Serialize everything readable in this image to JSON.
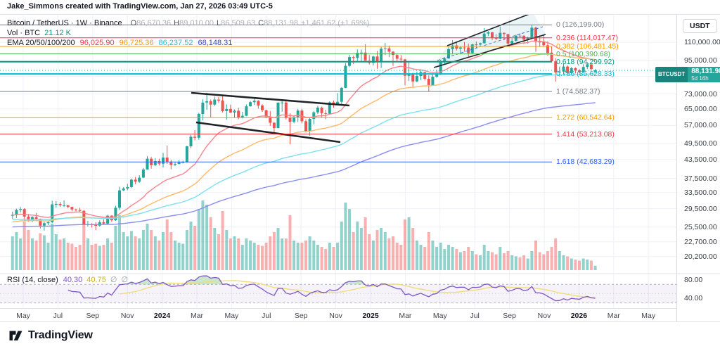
{
  "header": {
    "attribution": "Jake_Simmons created with TradingView.com, Jan 27, 2026 03:49 UTC-5"
  },
  "legend": {
    "symbol": "Bitcoin / TetherUS · 1W · Binance",
    "ohlc": {
      "o_label": "O",
      "o": "86,670.36",
      "h_label": "H",
      "h": "89,010.00",
      "l_label": "L",
      "l": "86,509.63",
      "c_label": "C",
      "c": "88,131.98",
      "change": "+1,461.62 (+1.69%)"
    },
    "volume": {
      "label": "Vol · BTC",
      "value": "21.12 K",
      "color": "#089981"
    },
    "ema": {
      "label": "EMA 20/50/100/200",
      "values": [
        {
          "text": "96,025.90",
          "color": "#f23645"
        },
        {
          "text": "96,725.36",
          "color": "#ff9800"
        },
        {
          "text": "86,237.52",
          "color": "#1fc0d8"
        },
        {
          "text": "68,148.31",
          "color": "#3d43d8"
        }
      ]
    }
  },
  "rsi_legend": {
    "title": "RSI (14, close)",
    "value1": "40.30",
    "value1_color": "#7e57c2",
    "value2": "40.75",
    "value2_color": "#cdb022",
    "empty1": "∅",
    "empty2": "∅"
  },
  "price_axis": {
    "currency": "USDT",
    "ticks": [
      {
        "label": "110,000.00",
        "price": 110000
      },
      {
        "label": "95,000.00",
        "price": 95000
      },
      {
        "label": "",
        "price": 84000
      },
      {
        "label": "73,000.00",
        "price": 73000
      },
      {
        "label": "65,000.00",
        "price": 65000
      },
      {
        "label": "57,000.00",
        "price": 57000
      },
      {
        "label": "49,500.00",
        "price": 49500
      },
      {
        "label": "43,500.00",
        "price": 43500
      },
      {
        "label": "37,500.00",
        "price": 37500
      },
      {
        "label": "33,500.00",
        "price": 33500
      },
      {
        "label": "29,500.00",
        "price": 29500
      },
      {
        "label": "25,500.00",
        "price": 25500
      },
      {
        "label": "22,700.00",
        "price": 22700
      },
      {
        "label": "20,200.00",
        "price": 20200
      }
    ],
    "rsi_ticks": [
      {
        "label": "80.00",
        "value": 80
      },
      {
        "label": "40.00",
        "value": 40
      }
    ],
    "badge": {
      "symbol": "BTCUSDT",
      "price": "88,131.98",
      "countdown": "5d 16h",
      "color_dark": "#17857c",
      "color_main": "#26a69a"
    }
  },
  "time_axis": {
    "labels": [
      {
        "text": "May"
      },
      {
        "text": "Jul"
      },
      {
        "text": "Sep"
      },
      {
        "text": "Nov"
      },
      {
        "text": "2024",
        "bold": true
      },
      {
        "text": "Mar"
      },
      {
        "text": "May"
      },
      {
        "text": "Jul"
      },
      {
        "text": "Sep"
      },
      {
        "text": "Nov"
      },
      {
        "text": "2025",
        "bold": true
      },
      {
        "text": "Mar"
      },
      {
        "text": "May"
      },
      {
        "text": "Jul"
      },
      {
        "text": "Sep"
      },
      {
        "text": "Nov"
      },
      {
        "text": "2026",
        "bold": true
      },
      {
        "text": "Mar"
      },
      {
        "text": "May"
      }
    ]
  },
  "fib_levels": [
    {
      "level": "0",
      "label": "0 (126,199.00)",
      "price": 126199.0,
      "color": "#787b86",
      "width": 1
    },
    {
      "level": "0.236",
      "label": "0.236 (114,017.47)",
      "price": 114017.47,
      "color": "#f23645",
      "width": 1
    },
    {
      "level": "0.382",
      "label": "0.382 (106,481.45)",
      "price": 106481.45,
      "color": "#ff9800",
      "width": 1
    },
    {
      "level": "0.5",
      "label": "0.5 (100,390.68)",
      "price": 100390.68,
      "color": "#4caf50",
      "width": 1
    },
    {
      "level": "0.618",
      "label": "0.618 (94,299.92)",
      "price": 94299.92,
      "color": "#089981",
      "width": 2
    },
    {
      "level": "0.786",
      "label": "0.786 (85,628.33)",
      "price": 85628.33,
      "color": "#00bcd4",
      "width": 2
    },
    {
      "level": "1",
      "label": "1 (74,582.37)",
      "price": 74582.37,
      "color": "#787b86",
      "width": 1
    },
    {
      "level": "1.272",
      "label": "1.272 (60,542.64)",
      "price": 60542.64,
      "color": "#ff9800",
      "width": 1
    },
    {
      "level": "1.414",
      "label": "1.414 (53,213.08)",
      "price": 53213.08,
      "color": "#f23645",
      "width": 1
    },
    {
      "level": "1.618",
      "label": "1.618 (42,683.29)",
      "price": 42683.29,
      "color": "#2962ff",
      "width": 1
    }
  ],
  "logo": {
    "text": "TradingView"
  },
  "chart_data": {
    "type": "candlestick",
    "symbol": "BTCUSDT",
    "timeframe": "1W",
    "exchange": "Binance",
    "current_price": 88.13198,
    "colors": {
      "up": "#26a69a",
      "down": "#ef5350",
      "vol_up": "rgba(38,166,154,0.5)",
      "vol_down": "rgba(239,83,80,0.45)",
      "grid": "#eef1f7",
      "price_line": "#26a69a"
    },
    "candles_format": [
      "open_k",
      "high_k",
      "low_k",
      "close_k",
      "volume_kbtc"
    ],
    "candles": [
      [
        27.9,
        28.8,
        27.2,
        28.1,
        160
      ],
      [
        28.1,
        29.5,
        27.4,
        29.2,
        180
      ],
      [
        29.2,
        29.9,
        28.6,
        29.4,
        150
      ],
      [
        29.4,
        29.6,
        26.8,
        27.7,
        230
      ],
      [
        27.7,
        28.3,
        26.6,
        26.9,
        190
      ],
      [
        26.9,
        27.8,
        26.5,
        27.6,
        150
      ],
      [
        27.6,
        28.5,
        26.7,
        27.2,
        140
      ],
      [
        27.2,
        27.3,
        25.2,
        25.8,
        175
      ],
      [
        25.8,
        26.6,
        24.8,
        26.3,
        165
      ],
      [
        26.3,
        26.8,
        25.9,
        26.5,
        130
      ],
      [
        26.5,
        31.4,
        26.3,
        30.5,
        220
      ],
      [
        30.5,
        31.3,
        29.7,
        30.6,
        170
      ],
      [
        30.6,
        31.1,
        29.9,
        30.3,
        145
      ],
      [
        30.3,
        31.5,
        29.9,
        30.3,
        150
      ],
      [
        30.3,
        30.4,
        29.6,
        29.9,
        130
      ],
      [
        29.9,
        30.0,
        28.9,
        29.3,
        125
      ],
      [
        29.3,
        29.5,
        28.9,
        29.2,
        110
      ],
      [
        29.2,
        29.7,
        28.7,
        29.0,
        120
      ],
      [
        29.0,
        29.2,
        25.9,
        26.0,
        230
      ],
      [
        26.0,
        26.8,
        25.6,
        26.1,
        150
      ],
      [
        26.1,
        26.3,
        25.4,
        25.9,
        120
      ],
      [
        25.9,
        26.5,
        24.9,
        25.8,
        125
      ],
      [
        25.8,
        26.9,
        25.6,
        26.5,
        115
      ],
      [
        26.5,
        27.1,
        26.1,
        26.2,
        120
      ],
      [
        26.2,
        28.1,
        26.1,
        27.9,
        150
      ],
      [
        27.9,
        28.0,
        26.6,
        26.9,
        130
      ],
      [
        26.9,
        30.2,
        26.8,
        29.7,
        210
      ],
      [
        29.7,
        35.1,
        29.2,
        34.1,
        260
      ],
      [
        34.1,
        35.0,
        33.9,
        34.6,
        180
      ],
      [
        34.6,
        35.9,
        34.1,
        35.0,
        160
      ],
      [
        35.0,
        37.4,
        34.7,
        37.1,
        185
      ],
      [
        37.1,
        37.9,
        35.8,
        36.5,
        160
      ],
      [
        36.5,
        38.4,
        36.2,
        37.7,
        150
      ],
      [
        37.7,
        40.7,
        37.6,
        40.2,
        190
      ],
      [
        40.2,
        44.7,
        40.2,
        43.8,
        220
      ],
      [
        43.8,
        44.4,
        40.5,
        41.6,
        190
      ],
      [
        41.6,
        44.0,
        41.3,
        43.0,
        160
      ],
      [
        43.0,
        43.8,
        41.5,
        42.1,
        140
      ],
      [
        42.1,
        45.9,
        40.8,
        44.2,
        180
      ],
      [
        44.2,
        48.6,
        42.0,
        42.8,
        240
      ],
      [
        42.8,
        43.4,
        40.3,
        41.7,
        180
      ],
      [
        41.7,
        42.8,
        41.3,
        42.0,
        140
      ],
      [
        42.0,
        43.3,
        41.9,
        42.6,
        130
      ],
      [
        42.6,
        43.1,
        42.2,
        42.6,
        125
      ],
      [
        42.6,
        48.5,
        42.4,
        48.3,
        190
      ],
      [
        48.3,
        52.9,
        47.6,
        52.1,
        230
      ],
      [
        52.1,
        54.9,
        50.7,
        51.7,
        210
      ],
      [
        51.7,
        63.0,
        50.9,
        62.4,
        290
      ],
      [
        62.4,
        70.1,
        59.3,
        68.3,
        330
      ],
      [
        68.3,
        73.8,
        64.5,
        69.0,
        310
      ],
      [
        69.0,
        70.0,
        60.8,
        67.2,
        250
      ],
      [
        67.2,
        71.6,
        66.4,
        69.9,
        200
      ],
      [
        69.9,
        71.3,
        68.1,
        69.4,
        170
      ],
      [
        69.4,
        72.8,
        63.1,
        63.8,
        280
      ],
      [
        63.8,
        67.3,
        59.6,
        64.9,
        190
      ],
      [
        64.9,
        67.2,
        62.8,
        63.1,
        150
      ],
      [
        63.1,
        64.7,
        60.6,
        64.0,
        160
      ],
      [
        64.0,
        65.5,
        59.8,
        60.8,
        150
      ],
      [
        60.8,
        63.5,
        60.2,
        61.5,
        120
      ],
      [
        61.5,
        67.3,
        61.3,
        66.3,
        150
      ],
      [
        66.3,
        69.2,
        66.1,
        68.5,
        140
      ],
      [
        68.5,
        70.6,
        67.1,
        69.3,
        130
      ],
      [
        69.3,
        69.6,
        65.1,
        66.7,
        120
      ],
      [
        66.7,
        67.3,
        63.4,
        64.3,
        115
      ],
      [
        64.3,
        64.5,
        60.7,
        60.9,
        130
      ],
      [
        60.9,
        63.9,
        56.8,
        58.2,
        160
      ],
      [
        58.2,
        58.5,
        53.5,
        55.8,
        180
      ],
      [
        55.8,
        68.4,
        55.7,
        68.2,
        200
      ],
      [
        68.2,
        69.9,
        63.5,
        68.3,
        150
      ],
      [
        68.3,
        69.4,
        59.7,
        60.7,
        150
      ],
      [
        60.7,
        62.7,
        49.1,
        58.7,
        260
      ],
      [
        58.7,
        61.8,
        57.9,
        60.9,
        140
      ],
      [
        60.9,
        64.9,
        58.5,
        64.1,
        130
      ],
      [
        64.1,
        65.0,
        57.9,
        58.9,
        130
      ],
      [
        58.9,
        59.8,
        53.9,
        54.6,
        140
      ],
      [
        54.6,
        60.6,
        52.5,
        60.0,
        160
      ],
      [
        60.0,
        63.8,
        57.5,
        63.2,
        140
      ],
      [
        63.2,
        66.5,
        62.4,
        65.6,
        120
      ],
      [
        65.6,
        66.1,
        60.8,
        62.8,
        110
      ],
      [
        62.8,
        64.5,
        59.8,
        62.5,
        100
      ],
      [
        62.5,
        68.9,
        62.1,
        68.4,
        130
      ],
      [
        68.4,
        69.4,
        65.5,
        67.0,
        110
      ],
      [
        67.0,
        73.6,
        66.9,
        68.7,
        130
      ],
      [
        68.7,
        77.2,
        66.8,
        76.7,
        230
      ],
      [
        76.7,
        93.4,
        76.5,
        91.3,
        320
      ],
      [
        91.3,
        99.6,
        90.3,
        97.9,
        290
      ],
      [
        97.9,
        98.9,
        92.6,
        97.2,
        180
      ],
      [
        97.2,
        104.0,
        94.1,
        101.2,
        230
      ],
      [
        101.2,
        103.9,
        94.2,
        101.4,
        200
      ],
      [
        101.4,
        108.3,
        95.7,
        95.1,
        250
      ],
      [
        95.1,
        99.5,
        92.2,
        93.5,
        170
      ],
      [
        93.5,
        98.8,
        91.5,
        98.3,
        140
      ],
      [
        98.3,
        102.7,
        89.2,
        94.6,
        190
      ],
      [
        94.6,
        105.9,
        89.7,
        104.5,
        200
      ],
      [
        104.5,
        109.4,
        99.5,
        104.8,
        180
      ],
      [
        104.8,
        107.2,
        97.8,
        102.1,
        150
      ],
      [
        102.1,
        102.5,
        91.2,
        99.5,
        160
      ],
      [
        99.5,
        100.1,
        94.7,
        96.6,
        130
      ],
      [
        96.6,
        99.5,
        93.3,
        96.1,
        120
      ],
      [
        96.1,
        96.5,
        78.2,
        84.4,
        240
      ],
      [
        84.4,
        95.0,
        81.0,
        86.0,
        250
      ],
      [
        86.0,
        86.5,
        76.6,
        80.7,
        200
      ],
      [
        80.7,
        87.1,
        80.2,
        84.3,
        140
      ],
      [
        84.3,
        88.8,
        81.6,
        86.9,
        120
      ],
      [
        86.9,
        87.0,
        81.3,
        82.4,
        110
      ],
      [
        82.4,
        84.7,
        74.5,
        78.4,
        180
      ],
      [
        78.4,
        86.0,
        78.3,
        83.8,
        140
      ],
      [
        83.8,
        88.5,
        83.1,
        85.2,
        110
      ],
      [
        85.2,
        95.9,
        84.9,
        94.0,
        130
      ],
      [
        94.0,
        97.9,
        92.9,
        96.8,
        100
      ],
      [
        96.8,
        105.8,
        96.4,
        104.1,
        120
      ],
      [
        104.1,
        112.0,
        100.7,
        107.3,
        110
      ],
      [
        107.3,
        110.8,
        103.1,
        104.6,
        100
      ],
      [
        104.6,
        106.8,
        100.4,
        105.6,
        85
      ],
      [
        105.6,
        110.3,
        102.1,
        105.5,
        90
      ],
      [
        105.5,
        108.9,
        98.2,
        101.0,
        110
      ],
      [
        101.0,
        108.8,
        100.7,
        108.2,
        90
      ],
      [
        108.2,
        110.6,
        105.1,
        108.0,
        75
      ],
      [
        108.0,
        109.7,
        107.2,
        109.2,
        70
      ],
      [
        109.2,
        123.1,
        108.9,
        117.9,
        120
      ],
      [
        117.9,
        120.2,
        115.6,
        119.0,
        90
      ],
      [
        119.0,
        119.5,
        112.0,
        114.2,
        85
      ],
      [
        114.2,
        117.4,
        111.9,
        113.2,
        75
      ],
      [
        113.2,
        124.5,
        112.7,
        118.5,
        110
      ],
      [
        118.5,
        118.9,
        111.8,
        117.4,
        80
      ],
      [
        117.4,
        117.6,
        107.4,
        108.9,
        90
      ],
      [
        108.9,
        113.4,
        107.3,
        111.2,
        70
      ],
      [
        111.2,
        116.8,
        110.6,
        115.9,
        65
      ],
      [
        115.9,
        118.0,
        114.2,
        115.8,
        60
      ],
      [
        115.8,
        116.5,
        108.7,
        112.4,
        70
      ],
      [
        112.4,
        114.9,
        108.8,
        114.0,
        55
      ],
      [
        114.0,
        126.2,
        113.6,
        123.5,
        90
      ],
      [
        123.5,
        124.5,
        102.1,
        110.5,
        140
      ],
      [
        110.5,
        116.1,
        106.0,
        110.1,
        85
      ],
      [
        110.1,
        116.5,
        106.6,
        107.5,
        75
      ],
      [
        107.5,
        110.7,
        98.9,
        101.3,
        90
      ],
      [
        101.3,
        106.5,
        94.0,
        94.6,
        110
      ],
      [
        94.6,
        97.0,
        80.6,
        86.7,
        150
      ],
      [
        86.7,
        90.8,
        83.9,
        87.3,
        90
      ],
      [
        87.3,
        93.1,
        85.0,
        90.8,
        70
      ],
      [
        90.8,
        91.7,
        85.6,
        86.2,
        65
      ],
      [
        86.2,
        90.6,
        85.7,
        89.6,
        55
      ],
      [
        89.6,
        90.2,
        86.0,
        88.1,
        50
      ],
      [
        88.1,
        89.0,
        85.8,
        87.0,
        45
      ],
      [
        87.0,
        92.5,
        86.5,
        90.5,
        55
      ],
      [
        90.5,
        94.1,
        89.0,
        92.4,
        50
      ],
      [
        92.4,
        93.0,
        87.8,
        89.0,
        45
      ],
      [
        86.7,
        89.0,
        86.5,
        88.13,
        21
      ]
    ],
    "emas": {
      "periods": [
        20,
        50,
        100,
        200
      ],
      "seeds": [
        28.0,
        26.5,
        27.0,
        25.5
      ],
      "line_colors": [
        "#f7838b",
        "#ffb866",
        "#7ce0ef",
        "#8a8df0"
      ]
    },
    "rsi": {
      "period": 14,
      "ma_period": 14,
      "line_color": "#7e57c2",
      "ma_color": "#f0dd7a",
      "band_fill": "rgba(126,87,194,0.08)",
      "overbought_fill": "rgba(76,175,80,0.30)",
      "overbought": 70,
      "oversold": 30,
      "middle": 50,
      "axis_range_note": "pane shows ~20-90"
    },
    "drawings": {
      "channel_2024": {
        "color": "#202327",
        "upper": [
          272,
          131,
          497,
          149
        ],
        "lower": [
          279,
          173,
          484,
          201
        ]
      },
      "channel_2025": {
        "color": "#202327",
        "fill": "rgba(56,154,180,0.10)",
        "upper": [
          636,
          64,
          758,
          17
        ],
        "lower": [
          617,
          95,
          776,
          48
        ],
        "mid_dashed": [
          622,
          85,
          772,
          37
        ],
        "mid_color": "#3b6fd6"
      }
    }
  }
}
